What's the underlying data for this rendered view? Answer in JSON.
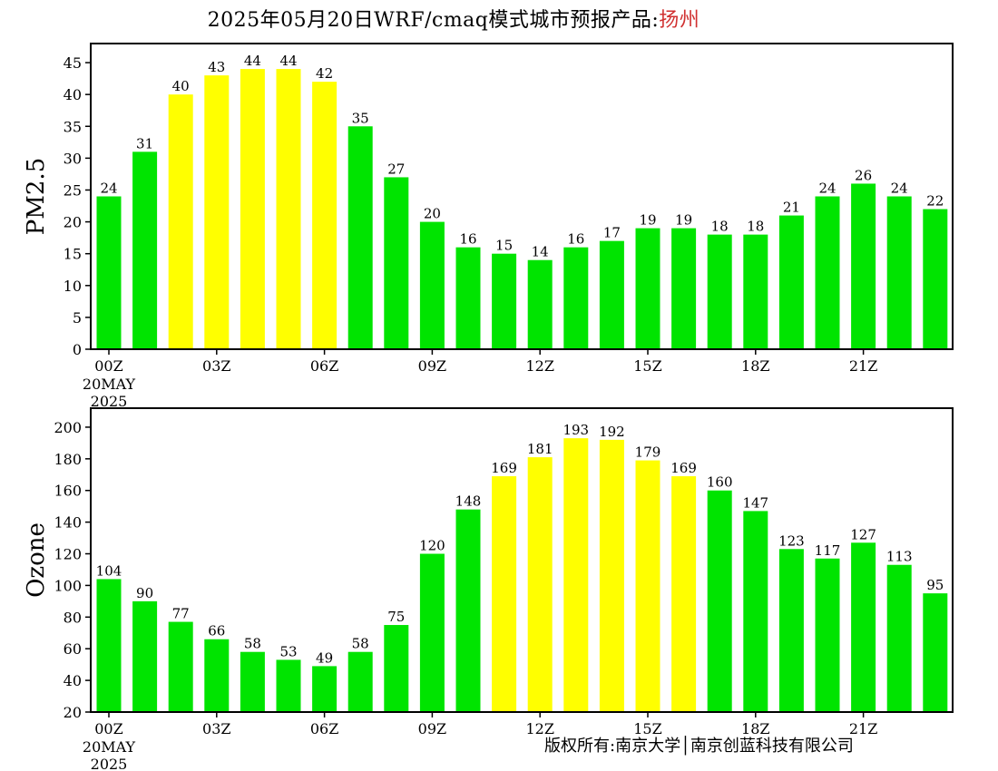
{
  "title": {
    "main": "2025年05月20日WRF/cmaq模式城市预报产品:",
    "city": "扬州"
  },
  "footer": "版权所有:南京大学│南京创蓝科技有限公司",
  "colors": {
    "green": "#00e400",
    "yellow": "#ffff00"
  },
  "chart_data": [
    {
      "type": "bar",
      "ylabel": "PM2.5",
      "ylim": [
        0,
        48
      ],
      "yticks": [
        0,
        5,
        10,
        15,
        20,
        25,
        30,
        35,
        40,
        45
      ],
      "values": [
        24,
        31,
        40,
        43,
        44,
        44,
        42,
        35,
        27,
        20,
        16,
        15,
        14,
        16,
        17,
        19,
        19,
        18,
        18,
        21,
        24,
        26,
        24,
        22
      ],
      "colors": [
        "green",
        "green",
        "yellow",
        "yellow",
        "yellow",
        "yellow",
        "yellow",
        "green",
        "green",
        "green",
        "green",
        "green",
        "green",
        "green",
        "green",
        "green",
        "green",
        "green",
        "green",
        "green",
        "green",
        "green",
        "green",
        "green"
      ],
      "xticks": [
        {
          "hour": 0,
          "label": "00Z",
          "sub": [
            "20MAY",
            "2025"
          ]
        },
        {
          "hour": 3,
          "label": "03Z"
        },
        {
          "hour": 6,
          "label": "06Z"
        },
        {
          "hour": 9,
          "label": "09Z"
        },
        {
          "hour": 12,
          "label": "12Z"
        },
        {
          "hour": 15,
          "label": "15Z"
        },
        {
          "hour": 18,
          "label": "18Z"
        },
        {
          "hour": 21,
          "label": "21Z"
        }
      ]
    },
    {
      "type": "bar",
      "ylabel": "Ozone",
      "ylim": [
        20,
        212
      ],
      "yticks": [
        20,
        40,
        60,
        80,
        100,
        120,
        140,
        160,
        180,
        200
      ],
      "values": [
        104,
        90,
        77,
        66,
        58,
        53,
        49,
        58,
        75,
        120,
        148,
        169,
        181,
        193,
        192,
        179,
        169,
        160,
        147,
        123,
        117,
        127,
        113,
        95
      ],
      "colors": [
        "green",
        "green",
        "green",
        "green",
        "green",
        "green",
        "green",
        "green",
        "green",
        "green",
        "green",
        "yellow",
        "yellow",
        "yellow",
        "yellow",
        "yellow",
        "yellow",
        "green",
        "green",
        "green",
        "green",
        "green",
        "green",
        "green"
      ],
      "xticks": [
        {
          "hour": 0,
          "label": "00Z",
          "sub": [
            "20MAY",
            "2025"
          ]
        },
        {
          "hour": 3,
          "label": "03Z"
        },
        {
          "hour": 6,
          "label": "06Z"
        },
        {
          "hour": 9,
          "label": "09Z"
        },
        {
          "hour": 12,
          "label": "12Z"
        },
        {
          "hour": 15,
          "label": "15Z"
        },
        {
          "hour": 18,
          "label": "18Z"
        },
        {
          "hour": 21,
          "label": "21Z"
        }
      ]
    }
  ]
}
